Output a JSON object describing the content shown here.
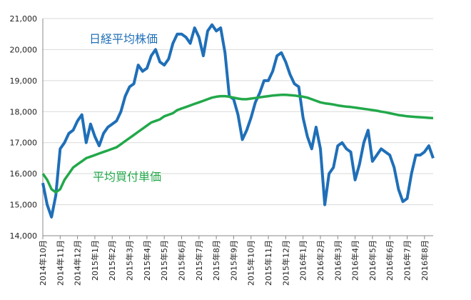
{
  "chart_data": {
    "type": "line",
    "categories": [
      "2014年10月",
      null,
      null,
      null,
      "2014年11月",
      null,
      null,
      null,
      "2014年12月",
      null,
      null,
      null,
      "2015年1月",
      null,
      null,
      null,
      "2015年2月",
      null,
      null,
      null,
      "2015年3月",
      null,
      null,
      null,
      "2015年4月",
      null,
      null,
      null,
      "2015年5月",
      null,
      null,
      null,
      "2015年6月",
      null,
      null,
      null,
      "2015年7月",
      null,
      null,
      null,
      "2015年8月",
      null,
      null,
      null,
      "2015年9月",
      null,
      null,
      null,
      "2015年10月",
      null,
      null,
      null,
      "2015年11月",
      null,
      null,
      null,
      "2015年12月",
      null,
      null,
      null,
      "2016年1月",
      null,
      null,
      null,
      "2016年2月",
      null,
      null,
      null,
      "2016年3月",
      null,
      null,
      null,
      "2016年4月",
      null,
      null,
      null,
      "2016年5月",
      null,
      null,
      null,
      "2016年6月",
      null,
      null,
      null,
      "2016年7月",
      null,
      null,
      null,
      "2016年8月",
      null,
      null
    ],
    "series": [
      {
        "name": "日経平均株価",
        "color": "#1f6fb8",
        "values": [
          15700,
          15000,
          14600,
          15300,
          16800,
          17000,
          17300,
          17400,
          17700,
          17900,
          17000,
          17600,
          17200,
          16900,
          17300,
          17500,
          17600,
          17700,
          18000,
          18500,
          18800,
          18900,
          19500,
          19300,
          19400,
          19800,
          20000,
          19600,
          19500,
          19700,
          20200,
          20500,
          20500,
          20400,
          20200,
          20700,
          20400,
          19800,
          20600,
          20800,
          20600,
          20700,
          19900,
          18500,
          18400,
          17900,
          17100,
          17400,
          17800,
          18300,
          18600,
          19000,
          19000,
          19300,
          19800,
          19900,
          19600,
          19200,
          18900,
          18800,
          17800,
          17200,
          16800,
          17500,
          16800,
          15000,
          16000,
          16200,
          16900,
          17000,
          16800,
          16700,
          15800,
          16300,
          17000,
          17400,
          16400,
          16600,
          16800,
          16700,
          16600,
          16200,
          15500,
          15100,
          15200,
          16000,
          16600,
          16600,
          16700,
          16900,
          16500
        ]
      },
      {
        "name": "平均買付単価",
        "color": "#22a84a",
        "values": [
          16000,
          15800,
          15500,
          15400,
          15500,
          15800,
          16000,
          16200,
          16300,
          16400,
          16500,
          16550,
          16600,
          16650,
          16700,
          16750,
          16800,
          16850,
          16950,
          17050,
          17150,
          17250,
          17350,
          17450,
          17550,
          17650,
          17700,
          17750,
          17850,
          17900,
          17950,
          18050,
          18100,
          18150,
          18200,
          18250,
          18300,
          18350,
          18400,
          18450,
          18480,
          18500,
          18500,
          18480,
          18450,
          18420,
          18400,
          18400,
          18420,
          18440,
          18460,
          18480,
          18500,
          18520,
          18530,
          18540,
          18540,
          18530,
          18520,
          18500,
          18480,
          18450,
          18400,
          18350,
          18300,
          18270,
          18250,
          18230,
          18200,
          18180,
          18160,
          18150,
          18130,
          18110,
          18090,
          18070,
          18050,
          18030,
          18000,
          17980,
          17950,
          17920,
          17890,
          17870,
          17850,
          17840,
          17830,
          17820,
          17810,
          17800,
          17790
        ]
      }
    ],
    "ylim": [
      14000,
      21000
    ],
    "yticks": [
      {
        "value": 14000,
        "label": "14,000"
      },
      {
        "value": 15000,
        "label": "15,000"
      },
      {
        "value": 16000,
        "label": "16,000"
      },
      {
        "value": 17000,
        "label": "17,000"
      },
      {
        "value": 18000,
        "label": "18,000"
      },
      {
        "value": 19000,
        "label": "19,000"
      },
      {
        "value": 20000,
        "label": "20,000"
      },
      {
        "value": 21000,
        "label": "21,000"
      }
    ],
    "grid": true
  }
}
